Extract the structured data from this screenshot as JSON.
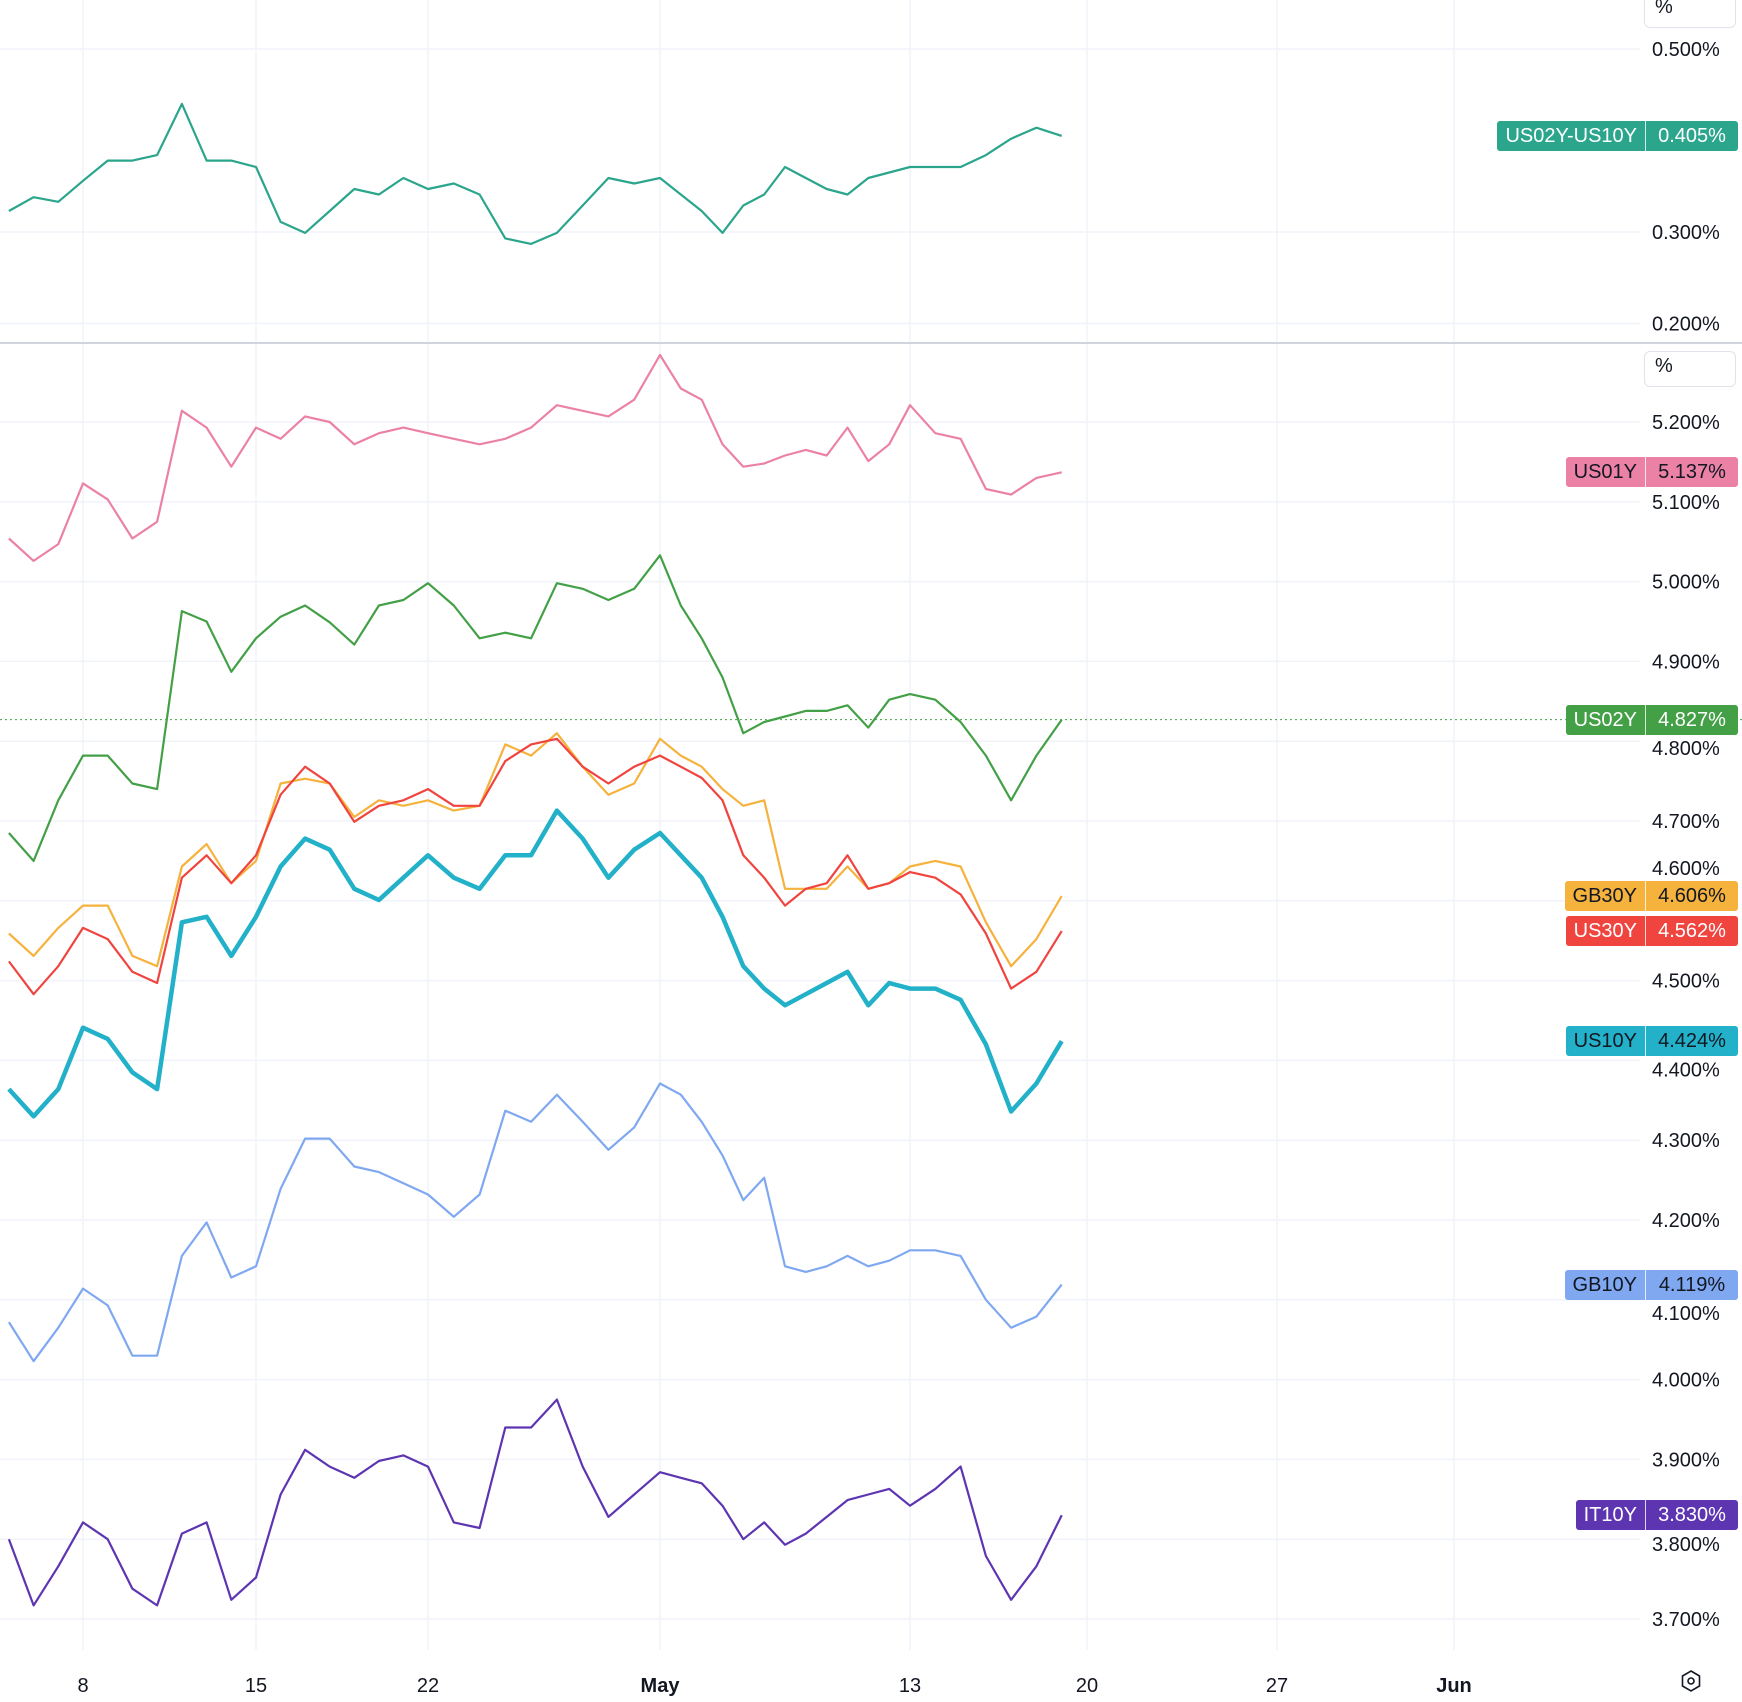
{
  "chart_data": [
    {
      "type": "line",
      "pane": "top",
      "unit_label": "%",
      "y_ticks": [
        "0.500%",
        "0.300%",
        "0.200%"
      ],
      "y_tick_values": [
        0.5,
        0.3,
        0.2
      ],
      "ylim": [
        0.185,
        0.53
      ],
      "grid": true,
      "x": [
        "2024-04-05",
        "2024-04-06",
        "2024-04-07",
        "2024-04-08",
        "2024-04-09",
        "2024-04-10",
        "2024-04-11",
        "2024-04-12",
        "2024-04-13",
        "2024-04-14",
        "2024-04-15",
        "2024-04-16",
        "2024-04-17",
        "2024-04-18",
        "2024-04-19",
        "2024-04-20",
        "2024-04-21",
        "2024-04-22",
        "2024-04-23",
        "2024-04-24",
        "2024-04-25",
        "2024-04-26",
        "2024-04-27",
        "2024-04-28",
        "2024-04-29",
        "2024-04-30",
        "2024-05-01",
        "2024-05-02",
        "2024-05-03",
        "2024-05-04",
        "2024-05-05",
        "2024-05-06",
        "2024-05-07",
        "2024-05-08",
        "2024-05-09",
        "2024-05-10",
        "2024-05-11",
        "2024-05-12",
        "2024-05-13",
        "2024-05-14",
        "2024-05-15",
        "2024-05-16",
        "2024-05-17",
        "2024-05-18",
        "2024-05-19"
      ],
      "series": [
        {
          "name": "US02Y-US10Y",
          "last": "0.405%",
          "color": "#2ba58c",
          "values": [
            0.323,
            0.338,
            0.333,
            0.356,
            0.378,
            0.378,
            0.384,
            0.44,
            0.378,
            0.378,
            0.371,
            0.311,
            0.299,
            0.323,
            0.347,
            0.341,
            0.359,
            0.347,
            0.353,
            0.341,
            0.293,
            0.287,
            0.299,
            0.329,
            0.359,
            0.353,
            0.359,
            0.341,
            0.323,
            0.299,
            0.329,
            0.341,
            0.371,
            0.359,
            0.347,
            0.341,
            0.359,
            0.365,
            0.371,
            0.371,
            0.371,
            0.384,
            0.402,
            0.414,
            0.405
          ]
        }
      ]
    },
    {
      "type": "line",
      "pane": "bottom",
      "unit_label": "%",
      "y_ticks": [
        "5.200%",
        "5.100%",
        "5.000%",
        "4.900%",
        "4.800%",
        "4.700%",
        "4.600%",
        "4.500%",
        "4.400%",
        "4.300%",
        "4.200%",
        "4.100%",
        "4.000%",
        "3.900%",
        "3.800%",
        "3.700%"
      ],
      "y_tick_values": [
        5.2,
        5.1,
        5.0,
        4.9,
        4.8,
        4.7,
        4.6,
        4.5,
        4.4,
        4.3,
        4.2,
        4.1,
        4.0,
        3.9,
        3.8,
        3.7
      ],
      "ylim": [
        3.655,
        5.27
      ],
      "grid": true,
      "x_ticks": [
        "8",
        "15",
        "22",
        "May",
        "13",
        "20",
        "27",
        "Jun"
      ],
      "x_tick_dates": [
        "2024-04-08",
        "2024-04-15",
        "2024-04-22",
        "2024-05-01",
        "2024-05-13",
        "2024-05-20",
        "2024-05-27",
        "2024-06-01"
      ],
      "series": [
        {
          "name": "US01Y",
          "last": "5.137%",
          "color": "#eb82a5",
          "text_dark": true,
          "values": [
            5.054,
            5.026,
            5.047,
            5.123,
            5.103,
            5.054,
            5.075,
            5.214,
            5.193,
            5.144,
            5.193,
            5.179,
            5.207,
            5.2,
            5.172,
            5.186,
            5.193,
            5.186,
            5.179,
            5.172,
            5.179,
            5.193,
            5.221,
            5.214,
            5.207,
            5.228,
            5.284,
            5.242,
            5.228,
            5.172,
            5.144,
            5.148,
            5.158,
            5.165,
            5.158,
            5.193,
            5.151,
            5.172,
            5.221,
            5.186,
            5.179,
            5.116,
            5.109,
            5.13,
            5.137
          ]
        },
        {
          "name": "US02Y",
          "last": "4.827%",
          "color": "#43a047",
          "values": [
            4.685,
            4.65,
            4.726,
            4.782,
            4.782,
            4.747,
            4.74,
            4.963,
            4.95,
            4.887,
            4.929,
            4.956,
            4.97,
            4.949,
            4.921,
            4.97,
            4.977,
            4.998,
            4.97,
            4.929,
            4.936,
            4.929,
            4.998,
            4.991,
            4.977,
            4.991,
            5.033,
            4.97,
            4.929,
            4.88,
            4.81,
            4.824,
            4.831,
            4.838,
            4.838,
            4.845,
            4.817,
            4.852,
            4.859,
            4.852,
            4.824,
            4.782,
            4.726,
            4.782,
            4.827
          ]
        },
        {
          "name": "GB30Y",
          "last": "4.606%",
          "color": "#f5b23d",
          "text_dark": true,
          "values": [
            4.559,
            4.531,
            4.566,
            4.594,
            4.594,
            4.531,
            4.518,
            4.643,
            4.671,
            4.622,
            4.65,
            4.747,
            4.753,
            4.747,
            4.705,
            4.726,
            4.719,
            4.726,
            4.713,
            4.719,
            4.796,
            4.782,
            4.81,
            4.768,
            4.733,
            4.747,
            4.803,
            4.782,
            4.768,
            4.74,
            4.719,
            4.726,
            4.615,
            4.615,
            4.615,
            4.643,
            4.615,
            4.622,
            4.643,
            4.65,
            4.643,
            4.573,
            4.518,
            4.552,
            4.606
          ]
        },
        {
          "name": "US30Y",
          "last": "4.562%",
          "color": "#f0443f",
          "values": [
            4.524,
            4.483,
            4.518,
            4.566,
            4.552,
            4.511,
            4.497,
            4.629,
            4.657,
            4.622,
            4.657,
            4.733,
            4.768,
            4.747,
            4.699,
            4.719,
            4.726,
            4.74,
            4.719,
            4.719,
            4.775,
            4.796,
            4.803,
            4.768,
            4.747,
            4.768,
            4.782,
            4.768,
            4.754,
            4.726,
            4.657,
            4.629,
            4.594,
            4.615,
            4.622,
            4.657,
            4.615,
            4.622,
            4.636,
            4.629,
            4.608,
            4.559,
            4.49,
            4.511,
            4.562
          ]
        },
        {
          "name": "US10Y",
          "last": "4.424%",
          "color": "#22b1c8",
          "text_dark": true,
          "thick": true,
          "values": [
            4.364,
            4.33,
            4.364,
            4.441,
            4.427,
            4.385,
            4.364,
            4.573,
            4.58,
            4.531,
            4.58,
            4.643,
            4.678,
            4.664,
            4.615,
            4.601,
            4.629,
            4.657,
            4.629,
            4.615,
            4.657,
            4.657,
            4.713,
            4.678,
            4.629,
            4.664,
            4.685,
            4.657,
            4.629,
            4.58,
            4.518,
            4.49,
            4.469,
            4.483,
            4.497,
            4.511,
            4.469,
            4.497,
            4.49,
            4.49,
            4.476,
            4.42,
            4.336,
            4.371,
            4.424
          ]
        },
        {
          "name": "GB10Y",
          "last": "4.119%",
          "color": "#7fa8f1",
          "text_dark": true,
          "values": [
            4.072,
            4.023,
            4.065,
            4.114,
            4.093,
            4.03,
            4.03,
            4.155,
            4.197,
            4.128,
            4.142,
            4.239,
            4.302,
            4.302,
            4.267,
            4.26,
            4.246,
            4.232,
            4.204,
            4.232,
            4.337,
            4.323,
            4.357,
            4.323,
            4.288,
            4.316,
            4.371,
            4.357,
            4.323,
            4.281,
            4.225,
            4.253,
            4.142,
            4.135,
            4.142,
            4.155,
            4.142,
            4.149,
            4.162,
            4.162,
            4.155,
            4.1,
            4.065,
            4.079,
            4.119
          ]
        },
        {
          "name": "IT10Y",
          "last": "3.830%",
          "color": "#5e35b1",
          "values": [
            3.8,
            3.717,
            3.766,
            3.821,
            3.8,
            3.738,
            3.717,
            3.807,
            3.821,
            3.724,
            3.752,
            3.856,
            3.912,
            3.891,
            3.877,
            3.898,
            3.905,
            3.891,
            3.821,
            3.814,
            3.94,
            3.94,
            3.975,
            3.891,
            3.828,
            3.856,
            3.884,
            3.877,
            3.87,
            3.842,
            3.8,
            3.821,
            3.793,
            3.807,
            3.828,
            3.849,
            3.856,
            3.863,
            3.842,
            3.863,
            3.891,
            3.779,
            3.724,
            3.766,
            3.83
          ]
        }
      ]
    }
  ],
  "icons": {
    "settings": "gear-icon"
  }
}
